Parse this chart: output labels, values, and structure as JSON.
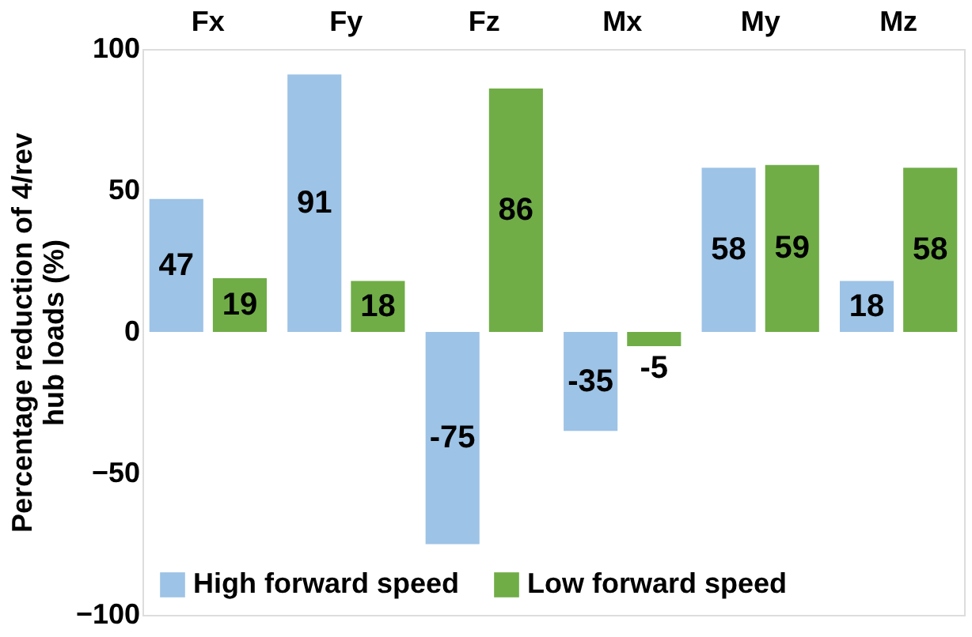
{
  "chart_data": {
    "type": "bar",
    "ylabel": "Percentage reduction of 4/rev hub loads (%)",
    "categories": [
      "Fx",
      "Fy",
      "Fz",
      "Mx",
      "My",
      "Mz"
    ],
    "series": [
      {
        "name": "High forward speed",
        "color": "#9dc3e6",
        "values": [
          47,
          91,
          -75,
          -35,
          58,
          18
        ]
      },
      {
        "name": "Low forward speed",
        "color": "#70ad47",
        "values": [
          19,
          18,
          86,
          -5,
          59,
          58
        ]
      }
    ],
    "ylim": [
      -100,
      100
    ],
    "yticks": [
      -100,
      -50,
      0,
      50,
      100
    ],
    "grid": false,
    "legend": "bottom",
    "data_labels": true
  }
}
